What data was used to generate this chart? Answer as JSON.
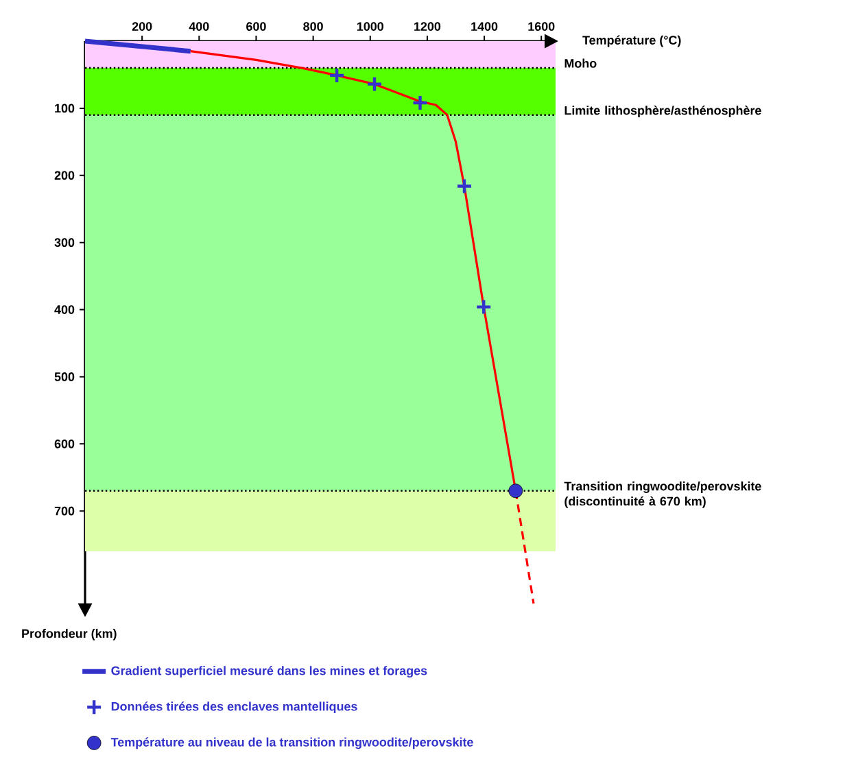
{
  "chart_data": {
    "type": "line",
    "xlabel": "Température (°C)",
    "ylabel": "Profondeur (km)",
    "xlim": [
      0,
      1650
    ],
    "xticks": [
      200,
      400,
      600,
      800,
      1000,
      1200,
      1400,
      1600
    ],
    "ylim": [
      850,
      0
    ],
    "yticks": [
      100,
      200,
      300,
      400,
      500,
      600,
      700
    ],
    "series": [
      {
        "name": "Gradient superficiel mesuré dans les mines et forages",
        "color": "#3333cc",
        "x": [
          0,
          370
        ],
        "values": [
          0,
          15
        ]
      },
      {
        "color": "#ff0000",
        "x": [
          370,
          600,
          772,
          883,
          1015,
          1175,
          1230,
          1270,
          1300,
          1330,
          1398,
          1510
        ],
        "values": [
          15,
          28,
          41,
          51,
          64,
          90,
          95,
          110,
          150,
          216,
          396,
          670
        ]
      },
      {
        "color": "#ff0000",
        "line_style": "dashed",
        "x": [
          1510,
          1573
        ],
        "values": [
          670,
          838
        ]
      },
      {
        "name": "Données tirées des enclaves mantelliques",
        "type": "scatter",
        "marker": "cross",
        "color": "#3333cc",
        "x": [
          883,
          1015,
          1175,
          1330,
          1398
        ],
        "values": [
          51,
          64,
          92,
          216,
          396
        ]
      },
      {
        "name": "Température au niveau de la transition ringwoodite/perovskite",
        "type": "scatter",
        "marker": "circle",
        "color": "#3333cc",
        "x": [
          1510
        ],
        "values": [
          670
        ]
      }
    ],
    "bands": [
      {
        "axis": "y",
        "from": 0,
        "to": 40,
        "color": "#ffccff"
      },
      {
        "axis": "y",
        "from": 40,
        "to": 110,
        "color": "#55ff00"
      },
      {
        "axis": "y",
        "from": 110,
        "to": 670,
        "color": "#99ff99"
      },
      {
        "axis": "y",
        "from": 670,
        "to": 760,
        "color": "#ddffaa"
      }
    ],
    "ref_lines": [
      {
        "axis": "y",
        "value": 40,
        "label": "Moho",
        "line_style": "dotted"
      },
      {
        "axis": "y",
        "value": 110,
        "label": "Limite lithosphère/asthénosphère",
        "line_style": "dotted"
      },
      {
        "axis": "y",
        "value": 670,
        "label": "Transition ringwoodite/perovskite (discontinuité à 670 km)",
        "line_style": "dotted"
      }
    ],
    "legend": "bottom"
  }
}
